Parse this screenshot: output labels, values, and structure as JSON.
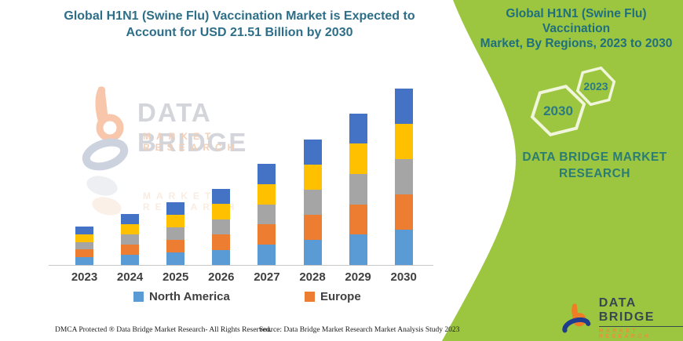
{
  "left_panel": {
    "title_line1": "Global H1N1 (Swine Flu) Vaccination Market is Expected to",
    "title_line2": "Account for USD 21.51 Billion by 2030",
    "title_color": "#2d6e88"
  },
  "watermark": {
    "brand": "DATA BRIDGE",
    "tagline": "MARKET  RESEARCH"
  },
  "chart_data": {
    "type": "bar",
    "stacked": true,
    "categories": [
      "2023",
      "2024",
      "2025",
      "2026",
      "2027",
      "2028",
      "2029",
      "2030"
    ],
    "unit": "USD Billion",
    "series": [
      {
        "name": "North America",
        "color": "#5B9BD5",
        "values": [
          0.93,
          1.24,
          1.52,
          1.85,
          2.46,
          3.05,
          3.69,
          4.3
        ]
      },
      {
        "name": "Europe",
        "color": "#ED7D31",
        "values": [
          0.93,
          1.24,
          1.52,
          1.85,
          2.46,
          3.05,
          3.69,
          4.3
        ]
      },
      {
        "name": "",
        "color": "#A5A5A5",
        "values": [
          0.93,
          1.24,
          1.52,
          1.85,
          2.46,
          3.05,
          3.69,
          4.3
        ]
      },
      {
        "name": "",
        "color": "#FFC000",
        "values": [
          0.93,
          1.24,
          1.52,
          1.85,
          2.46,
          3.05,
          3.69,
          4.3
        ]
      },
      {
        "name": "",
        "color": "#4472C4",
        "values": [
          0.93,
          1.24,
          1.52,
          1.85,
          2.46,
          3.05,
          3.69,
          4.3
        ]
      }
    ],
    "totals_estimated": [
      4.66,
      6.19,
      7.62,
      9.23,
      12.28,
      15.23,
      18.47,
      21.51
    ],
    "highlight_value": "USD 21.51 Billion by 2030",
    "xlabel": "",
    "ylabel": "",
    "y_axis_visible": false,
    "grid": false,
    "legend_position": "bottom",
    "legend_visible_entries": [
      "North America",
      "Europe"
    ]
  },
  "legend": {
    "items": [
      {
        "label": "North America",
        "color": "#5B9BD5"
      },
      {
        "label": "Europe",
        "color": "#ED7D31"
      }
    ]
  },
  "right_panel": {
    "background_color": "#9cc63f",
    "heading_line1": "Global H1N1 (Swine Flu) Vaccination",
    "heading_line2": "Market, By Regions, 2023 to 2030",
    "hexagons": [
      {
        "label": "2030"
      },
      {
        "label": "2023"
      }
    ],
    "brand_line1": "DATA BRIDGE MARKET",
    "brand_line2": "RESEARCH",
    "text_color": "#2b7c74"
  },
  "footer": {
    "left": "DMCA Protected ® Data Bridge Market Research-  All Rights Reserved.",
    "right": "Source: Data Bridge Market Research  Market Analysis Study 2023"
  },
  "logo": {
    "brand": "DATA BRIDGE",
    "tagline": "MARKET RESEARCH"
  }
}
